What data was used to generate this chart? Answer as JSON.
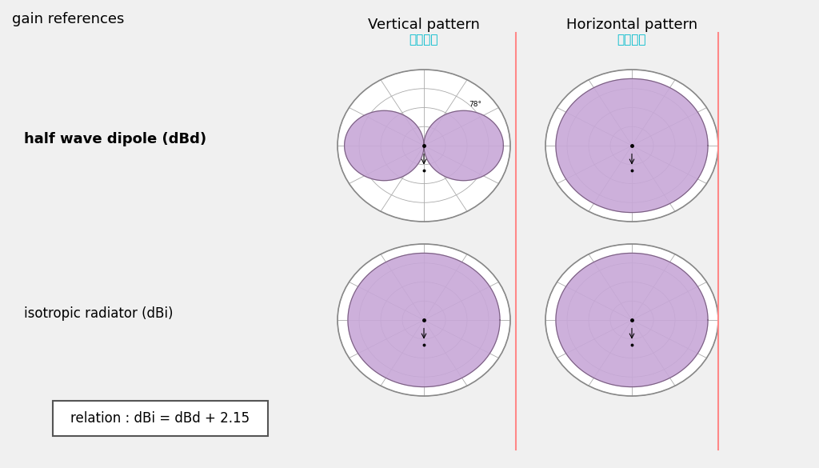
{
  "bg_color": "#f0f0f0",
  "title_gain": "gain references",
  "title_vertical": "Vertical pattern",
  "title_vertical_cn": "垂直图案",
  "title_horizontal": "Horizontal pattern",
  "title_horizontal_cn": "水平图案",
  "label_dipole": "half wave dipole (dBd)",
  "label_isotropic": "isotropic radiator (dBi)",
  "relation_text": "relation : dBi = dBd + 2.15",
  "purple_fill": "#c8a8d8",
  "purple_edge": "#7a6080",
  "grid_color": "#aaaaaa",
  "angle_label": "78°",
  "red_line_color": "#ff8888",
  "cyan_color": "#00bbcc"
}
